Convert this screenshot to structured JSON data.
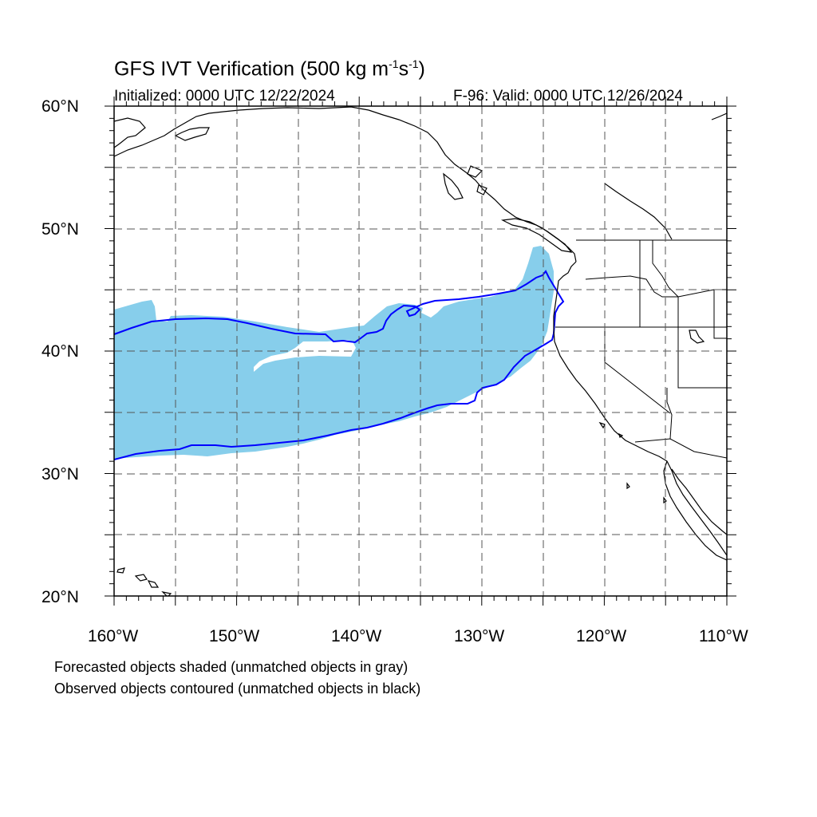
{
  "title": {
    "main": "GFS IVT Verification (500 kg m",
    "sup1": "-1",
    "mid": "s",
    "sup2": "-1",
    "end": ")"
  },
  "initialized": "Initialized: 0000 UTC 12/22/2024",
  "valid": "F-96: Valid: 0000 UTC 12/26/2024",
  "lat_labels": [
    "60°N",
    "50°N",
    "40°N",
    "30°N",
    "20°N"
  ],
  "lon_labels": [
    "160°W",
    "150°W",
    "140°W",
    "130°W",
    "120°W",
    "110°W"
  ],
  "notes": {
    "forecast": "Forecasted objects shaded (unmatched objects in gray)",
    "observed": "Observed objects contoured (unmatched objects in black)"
  },
  "colors": {
    "forecast_fill": "#87ceeb",
    "observed_contour": "#0000ff",
    "coastline": "#000000",
    "grid": "#555555"
  }
}
